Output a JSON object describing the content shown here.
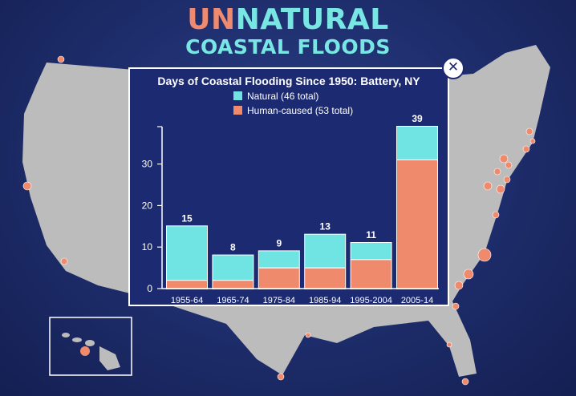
{
  "header": {
    "title_part1": "UN",
    "title_part2": "NATURAL",
    "title_line2": "COASTAL FLOODS"
  },
  "colors": {
    "background": "#1d2c6a",
    "land": "#bcbcbc",
    "natural": "#6fe4e2",
    "human": "#f08a6d",
    "site_marker": "#f08a6d",
    "accent": "#78e6e3"
  },
  "icons": {
    "close": "close-icon"
  },
  "chart_data": {
    "type": "bar",
    "stacked": true,
    "title": "Days of Coastal Flooding Since 1950: Battery, NY",
    "categories": [
      "1955-64",
      "1965-74",
      "1975-84",
      "1985-94",
      "1995-2004",
      "2005-14"
    ],
    "series": [
      {
        "name": "Natural (46 total)",
        "values": [
          13,
          6,
          4,
          8,
          4,
          8
        ]
      },
      {
        "name": "Human-caused (53 total)",
        "values": [
          2,
          2,
          5,
          5,
          7,
          31
        ]
      }
    ],
    "totals": [
      15,
      8,
      9,
      13,
      11,
      39
    ],
    "yticks": [
      0,
      10,
      20,
      30
    ],
    "ylim": [
      0,
      39
    ],
    "xlabel": "",
    "ylabel": "",
    "legend": "top",
    "grid": false
  }
}
